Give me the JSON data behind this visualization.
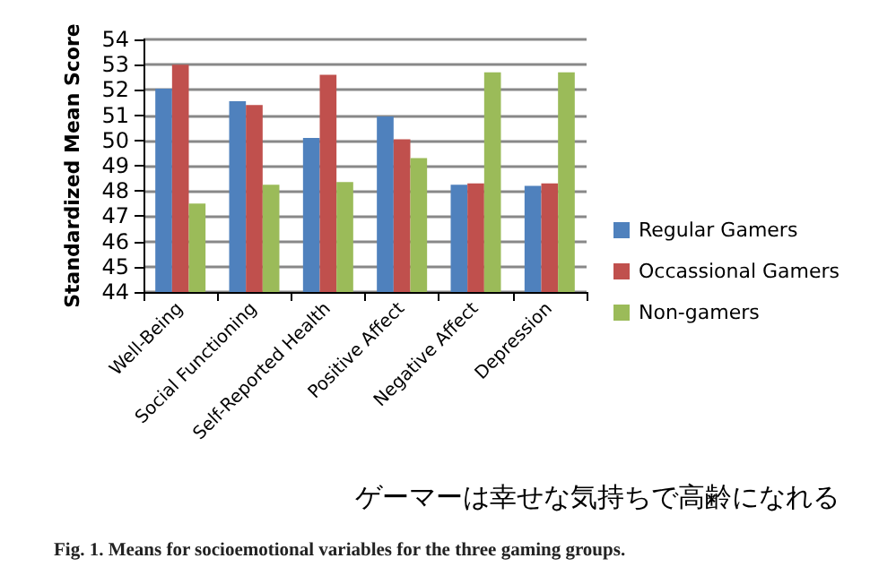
{
  "chart_data": {
    "type": "bar",
    "ylabel": "Standardized Mean Score",
    "categories": [
      "Well-Being",
      "Social Functioning",
      "Self-Reported Health",
      "Positive Affect",
      "Negative Affect",
      "Depression"
    ],
    "series": [
      {
        "name": "Regular Gamers",
        "color": "#4f81bd",
        "values": [
          52.05,
          51.55,
          50.1,
          50.95,
          48.25,
          48.2
        ]
      },
      {
        "name": "Occassional Gamers",
        "color": "#c0504d",
        "values": [
          53.0,
          51.4,
          52.6,
          50.05,
          48.3,
          48.3
        ]
      },
      {
        "name": "Non-gamers",
        "color": "#9bbb59",
        "values": [
          47.5,
          48.25,
          48.35,
          49.3,
          52.7,
          52.7
        ]
      }
    ],
    "ylim": [
      44,
      54
    ],
    "yticks": [
      44,
      45,
      46,
      47,
      48,
      49,
      50,
      51,
      52,
      53,
      54
    ],
    "grid": "y",
    "legend": "right",
    "annotations": [
      "ゲーマーは幸せな気持ちで高齢になれる",
      "Fig. 1. Means for socioemotional variables for the three gaming groups."
    ]
  }
}
